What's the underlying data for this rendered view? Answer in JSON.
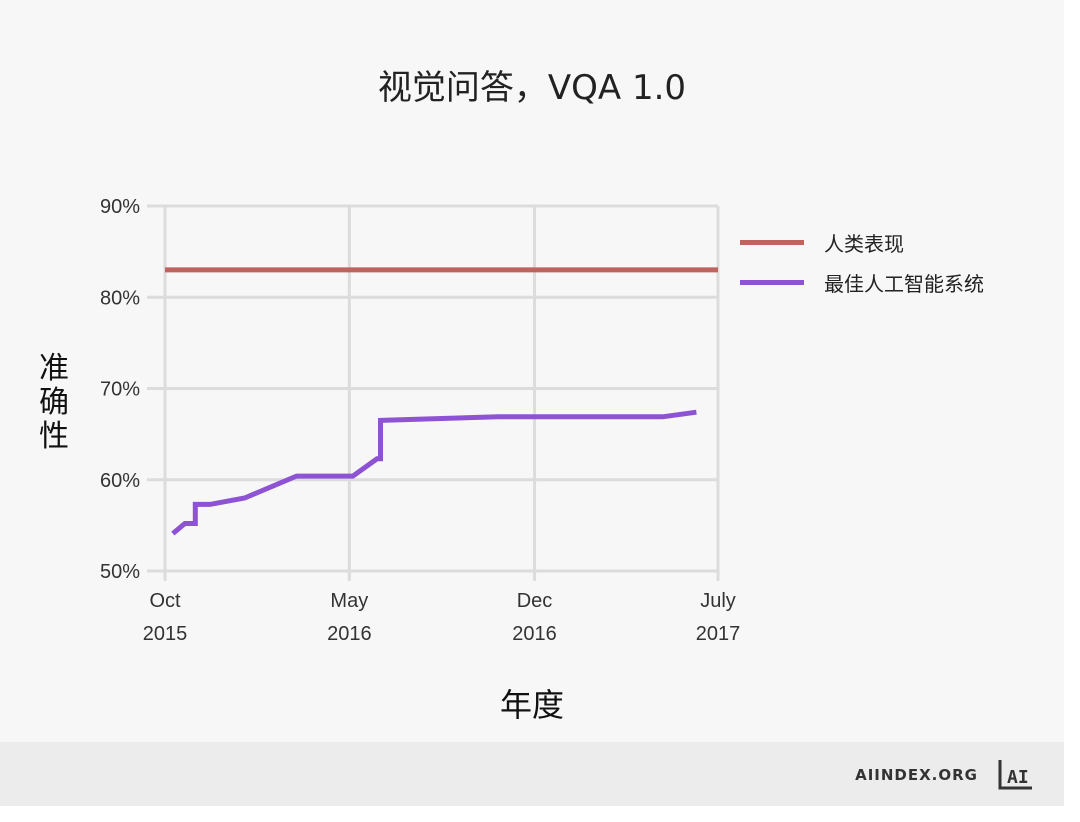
{
  "colors": {
    "background": "#f7f7f7",
    "footer": "#ececec",
    "grid": "#dcdcdc",
    "human": "#c0635f",
    "best_ai": "#8e52d4"
  },
  "footer": {
    "brand": "AIINDEX.ORG",
    "logo_text": "AI"
  },
  "chart_data": {
    "type": "line",
    "title": "视觉问答，VQA 1.0",
    "xlabel": "年度",
    "ylabel": "准确性",
    "xlim": [
      "2015-10-01",
      "2017-07-01"
    ],
    "ylim": [
      50,
      90
    ],
    "y_unit": "%",
    "y_ticks": [
      "90%",
      "80%",
      "70%",
      "60%",
      "50%"
    ],
    "x_ticks": [
      {
        "date": "2015-10-01",
        "line1": "Oct",
        "line2": "2015"
      },
      {
        "date": "2016-05-01",
        "line1": "May",
        "line2": "2016"
      },
      {
        "date": "2016-12-01",
        "line1": "Dec",
        "line2": "2016"
      },
      {
        "date": "2017-07-01",
        "line1": "July",
        "line2": "2017"
      }
    ],
    "grid": true,
    "legend_position": "right",
    "series": [
      {
        "name": "人类表现",
        "color": "#c0635f",
        "points": [
          {
            "x": "2015-10-01",
            "y": 83.0
          },
          {
            "x": "2017-07-01",
            "y": 83.0
          }
        ]
      },
      {
        "name": "最佳人工智能系统",
        "color": "#8e52d4",
        "points": [
          {
            "x": "2015-10-10",
            "y": 54.1
          },
          {
            "x": "2015-10-24",
            "y": 55.2
          },
          {
            "x": "2015-11-05",
            "y": 55.2
          },
          {
            "x": "2015-11-05",
            "y": 57.3
          },
          {
            "x": "2015-11-22",
            "y": 57.3
          },
          {
            "x": "2016-01-01",
            "y": 58.0
          },
          {
            "x": "2016-03-01",
            "y": 60.4
          },
          {
            "x": "2016-05-05",
            "y": 60.4
          },
          {
            "x": "2016-06-02",
            "y": 62.3
          },
          {
            "x": "2016-06-06",
            "y": 62.3
          },
          {
            "x": "2016-06-06",
            "y": 66.5
          },
          {
            "x": "2016-10-20",
            "y": 66.9
          },
          {
            "x": "2017-04-28",
            "y": 66.9
          },
          {
            "x": "2017-06-06",
            "y": 67.4
          }
        ]
      }
    ]
  }
}
